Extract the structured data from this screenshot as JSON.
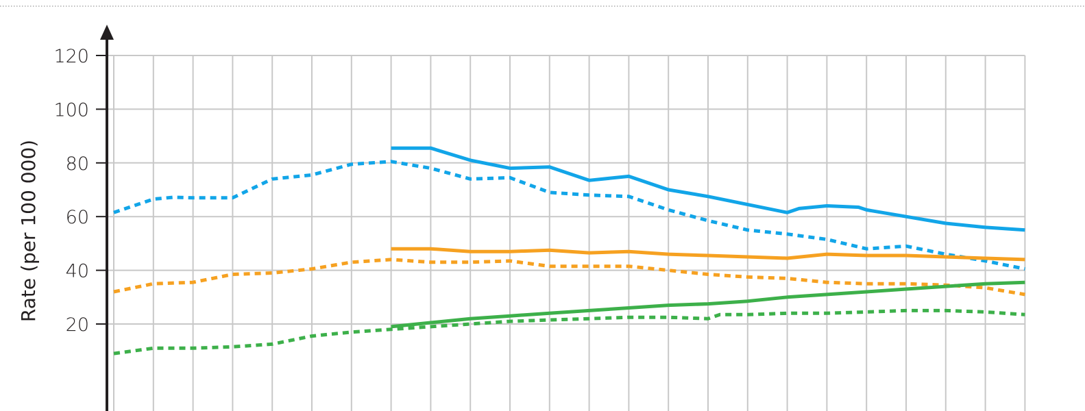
{
  "chart_data": {
    "type": "line",
    "title": "",
    "xlabel": "",
    "ylabel": "Rate (per 100 000)",
    "ylim": [
      0,
      120
    ],
    "y_ticks": [
      20,
      40,
      60,
      80,
      100,
      120
    ],
    "x_positions": [
      0,
      1,
      2,
      3,
      4,
      5,
      6,
      7,
      8,
      9,
      10,
      11,
      12,
      13,
      14,
      15,
      16,
      17,
      18,
      19,
      20,
      21,
      22,
      23
    ],
    "grid": true,
    "legend": "none",
    "colors": {
      "blue": "#12a5e8",
      "orange": "#f6a121",
      "green": "#3db04a",
      "axis": "#231f20",
      "grid": "#c8c8c8"
    },
    "series": [
      {
        "color": "blue",
        "style": "solid",
        "points": [
          [
            7,
            85.5
          ],
          [
            8,
            85.5
          ],
          [
            9,
            81.0
          ],
          [
            10,
            78.0
          ],
          [
            11,
            78.5
          ],
          [
            12,
            73.5
          ],
          [
            13,
            75.0
          ],
          [
            14,
            70.0
          ],
          [
            15,
            67.5
          ],
          [
            16,
            64.5
          ],
          [
            17,
            61.5
          ],
          [
            17.3,
            63.0
          ],
          [
            18,
            64.0
          ],
          [
            18.8,
            63.5
          ],
          [
            19,
            62.5
          ],
          [
            20,
            60.0
          ],
          [
            21,
            57.5
          ],
          [
            22,
            56.0
          ],
          [
            23,
            55.0
          ]
        ]
      },
      {
        "color": "blue",
        "style": "dotted",
        "points": [
          [
            0,
            61.5
          ],
          [
            1,
            66.5
          ],
          [
            1.5,
            67.2
          ],
          [
            2,
            67.0
          ],
          [
            3,
            67.0
          ],
          [
            4,
            74.0
          ],
          [
            5,
            75.5
          ],
          [
            6,
            79.5
          ],
          [
            7,
            80.5
          ],
          [
            8,
            78.0
          ],
          [
            9,
            74.0
          ],
          [
            10,
            74.5
          ],
          [
            11,
            69.0
          ],
          [
            12,
            68.0
          ],
          [
            13,
            67.5
          ],
          [
            14,
            62.5
          ],
          [
            15,
            58.5
          ],
          [
            16,
            55.0
          ],
          [
            17,
            53.5
          ],
          [
            18,
            51.5
          ],
          [
            19,
            48.0
          ],
          [
            20,
            49.0
          ],
          [
            21,
            46.0
          ],
          [
            22,
            43.5
          ],
          [
            23,
            40.5
          ]
        ]
      },
      {
        "color": "orange",
        "style": "solid",
        "points": [
          [
            7,
            48.0
          ],
          [
            8,
            48.0
          ],
          [
            9,
            47.0
          ],
          [
            10,
            47.0
          ],
          [
            11,
            47.5
          ],
          [
            12,
            46.5
          ],
          [
            13,
            47.0
          ],
          [
            14,
            46.0
          ],
          [
            15,
            45.5
          ],
          [
            16,
            45.0
          ],
          [
            17,
            44.5
          ],
          [
            18,
            46.0
          ],
          [
            19,
            45.5
          ],
          [
            20,
            45.5
          ],
          [
            21,
            45.0
          ],
          [
            22,
            44.5
          ],
          [
            23,
            44.0
          ]
        ]
      },
      {
        "color": "orange",
        "style": "dotted",
        "points": [
          [
            0,
            32.0
          ],
          [
            1,
            35.0
          ],
          [
            2,
            35.5
          ],
          [
            3,
            38.5
          ],
          [
            4,
            39.0
          ],
          [
            5,
            40.5
          ],
          [
            6,
            43.0
          ],
          [
            7,
            44.0
          ],
          [
            8,
            43.0
          ],
          [
            9,
            43.0
          ],
          [
            10,
            43.5
          ],
          [
            11,
            41.5
          ],
          [
            12,
            41.5
          ],
          [
            13,
            41.5
          ],
          [
            14,
            40.0
          ],
          [
            15,
            38.5
          ],
          [
            16,
            37.5
          ],
          [
            17,
            37.0
          ],
          [
            18,
            35.5
          ],
          [
            19,
            35.0
          ],
          [
            20,
            35.0
          ],
          [
            21,
            34.5
          ],
          [
            22,
            33.5
          ],
          [
            23,
            31.0
          ]
        ]
      },
      {
        "color": "green",
        "style": "solid",
        "points": [
          [
            7,
            19.0
          ],
          [
            8,
            20.5
          ],
          [
            9,
            22.0
          ],
          [
            10,
            23.0
          ],
          [
            11,
            24.0
          ],
          [
            12,
            25.0
          ],
          [
            13,
            26.0
          ],
          [
            14,
            27.0
          ],
          [
            15,
            27.5
          ],
          [
            16,
            28.5
          ],
          [
            17,
            30.0
          ],
          [
            18,
            31.0
          ],
          [
            19,
            32.0
          ],
          [
            20,
            33.0
          ],
          [
            21,
            34.0
          ],
          [
            22,
            35.0
          ],
          [
            23,
            35.5
          ]
        ]
      },
      {
        "color": "green",
        "style": "dotted",
        "points": [
          [
            0,
            9.0
          ],
          [
            1,
            11.0
          ],
          [
            2,
            11.0
          ],
          [
            3,
            11.5
          ],
          [
            4,
            12.5
          ],
          [
            5,
            15.5
          ],
          [
            6,
            17.0
          ],
          [
            7,
            18.0
          ],
          [
            8,
            19.0
          ],
          [
            9,
            20.0
          ],
          [
            10,
            21.0
          ],
          [
            11,
            21.5
          ],
          [
            12,
            22.0
          ],
          [
            13,
            22.5
          ],
          [
            14,
            22.5
          ],
          [
            15,
            22.0
          ],
          [
            15.3,
            23.5
          ],
          [
            16,
            23.5
          ],
          [
            17,
            24.0
          ],
          [
            18,
            24.0
          ],
          [
            19,
            24.5
          ],
          [
            20,
            25.0
          ],
          [
            21,
            25.0
          ],
          [
            22,
            24.5
          ],
          [
            23,
            23.5
          ]
        ]
      }
    ]
  }
}
